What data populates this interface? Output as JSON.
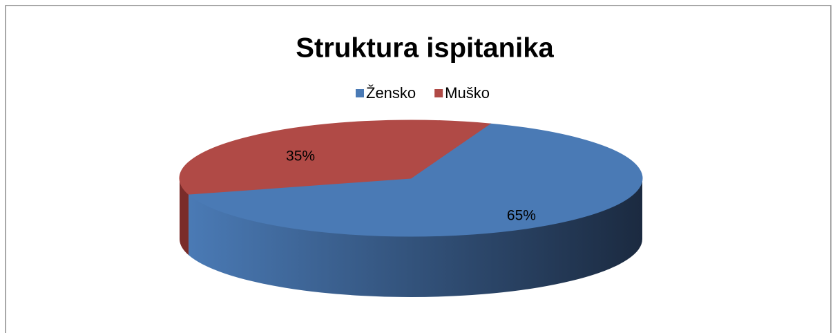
{
  "chart_data": {
    "type": "pie",
    "title": "Struktura ispitanika",
    "categories": [
      "Žensko",
      "Muško"
    ],
    "values": [
      65,
      35
    ],
    "value_labels": [
      "65%",
      "35%"
    ],
    "colors": [
      "#4a7ab5",
      "#b04a46"
    ],
    "legend": "top"
  }
}
